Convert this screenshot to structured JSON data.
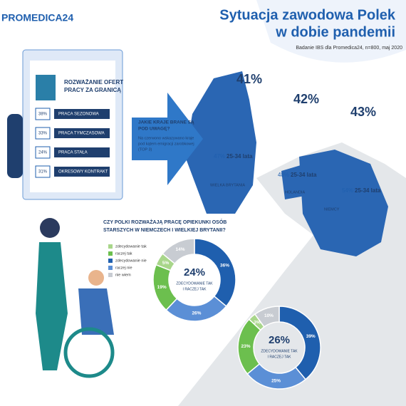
{
  "header": {
    "logo": "PROMEDICA24",
    "title_line1": "Sytuacja zawodowa Polek",
    "title_line2": "w dobie pandemii",
    "source": "Badanie IBS dla Promedica24, n=800, maj 2020"
  },
  "card": {
    "title_line1": "ROZWAŻANIE OFERT",
    "title_line2": "PRACY ZA GRANICĄ",
    "items": [
      {
        "pct": "38%",
        "label": "PRACA SEZONOWA"
      },
      {
        "pct": "33%",
        "label": "PRACA TYMCZASOWA"
      },
      {
        "pct": "24%",
        "label": "PRACA STAŁA"
      },
      {
        "pct": "31%",
        "label": "OKRESOWY KONTRAKT"
      }
    ]
  },
  "arrow": {
    "q1": "JAKIE KRAJE BRANE SĄ",
    "q2": "POD UWAGĘ?",
    "n1": "Na czerwono wskazywano kraje",
    "n2": "pod kątem emigracji zarobkowej",
    "n3": "(TOP 3)"
  },
  "countries": [
    {
      "name": "WIELKA BRYTANIA",
      "pct": "41%",
      "age": "47%",
      "age_label": "25-34 lata"
    },
    {
      "name": "HOLANDIA",
      "pct": "42%",
      "age": "48%",
      "age_label": "25-34 lata"
    },
    {
      "name": "NIEMCY",
      "pct": "43%",
      "age": "54%",
      "age_label": "25-34 lata"
    }
  ],
  "question": {
    "line1": "CZY POLKI ROZWAŻAJĄ PRACĘ OPIEKUNKI OSÓB",
    "line2": "STARSZYCH W NIEMCZECH I WIELKIEJ BRYTANII?"
  },
  "legend": [
    {
      "name": "zdecydowanie tak",
      "color": "#a8d68a"
    },
    {
      "name": "raczej tak",
      "color": "#6cbf4e"
    },
    {
      "name": "zdecydowanie nie",
      "color": "#1f5fae"
    },
    {
      "name": "raczej nie",
      "color": "#5b8fd6"
    },
    {
      "name": "nie wiem",
      "color": "#c8ccd2"
    }
  ],
  "donuts": [
    {
      "center": "24%",
      "c1": "ZDECYDOWANIE TAK",
      "c2": "I RACZEJ TAK",
      "values": [
        36,
        26,
        19,
        5,
        14
      ],
      "value_labels": [
        "36%",
        "26%",
        "19%",
        "5%",
        "14%"
      ],
      "order": [
        2,
        3,
        1,
        0,
        4
      ]
    },
    {
      "center": "26%",
      "c1": "ZDECYDOWANIE TAK",
      "c2": "I RACZEJ TAK",
      "values": [
        39,
        25,
        23,
        3,
        10
      ],
      "value_labels": [
        "39%",
        "25%",
        "23%",
        "3%",
        "10%"
      ],
      "order": [
        2,
        3,
        1,
        0,
        4
      ]
    }
  ]
}
